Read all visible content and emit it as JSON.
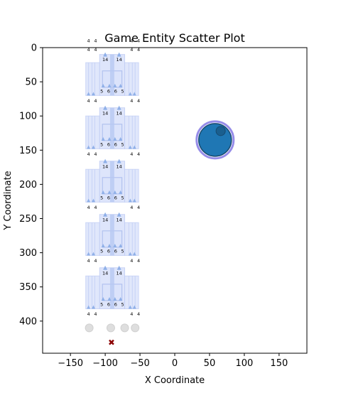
{
  "chart_data": {
    "type": "scatter",
    "title": "Game Entity Scatter Plot",
    "xlabel": "X Coordinate",
    "ylabel": "Y Coordinate",
    "xlim": [
      -190,
      190
    ],
    "ylim": [
      447,
      0
    ],
    "y_inverted": true,
    "x_ticks": [
      -150,
      -100,
      -50,
      0,
      50,
      100,
      150
    ],
    "x_tick_labels": [
      "−150",
      "−100",
      "−50",
      "0",
      "50",
      "100",
      "150"
    ],
    "y_ticks": [
      0,
      50,
      100,
      150,
      200,
      250,
      300,
      350,
      400
    ],
    "y_tick_labels": [
      "0",
      "50",
      "100",
      "150",
      "200",
      "250",
      "300",
      "350",
      "400"
    ],
    "grid": false,
    "colors": {
      "wall_fill": "#dbe3fb",
      "wall_edge": "#c3cff5",
      "triangle": "#8fb0e8",
      "player": "#1f77b4",
      "player_ring": "#8b7fe6",
      "enemy": "#8b0000",
      "gray_circle": "#d9d9d9"
    },
    "structure_repeats_y": [
      40,
      118,
      196,
      274,
      352
    ],
    "label_rows": [
      {
        "y": -8,
        "labels": [
          "4",
          "4",
          "",
          "",
          "4",
          "4"
        ]
      },
      {
        "y": 5,
        "labels": [
          "4",
          "4",
          "4",
          "4"
        ]
      },
      {
        "y": 80,
        "labels": [
          "4",
          "4",
          "4",
          "4"
        ]
      },
      {
        "y": 158,
        "labels": [
          "4",
          "4",
          "4",
          "4"
        ]
      },
      {
        "y": 236,
        "labels": [
          "4",
          "4",
          "4",
          "4"
        ]
      },
      {
        "y": 314,
        "labels": [
          "4",
          "4",
          "4",
          "4"
        ]
      },
      {
        "y": 392,
        "labels": [
          "4",
          "4",
          "4",
          "4"
        ]
      }
    ],
    "mid_labels": [
      "5",
      "6",
      "6",
      "5"
    ],
    "tri_labels": [
      "14",
      "14"
    ],
    "series": [
      {
        "x": [
          -123,
          -92,
          -72,
          -57
        ],
        "y": [
          410,
          410,
          410,
          410
        ],
        "marker": "circle"
      },
      {
        "x": [
          58
        ],
        "y": [
          135
        ],
        "marker": "large-circle"
      },
      {
        "x": [
          66
        ],
        "y": [
          122
        ],
        "marker": "small-circle"
      },
      {
        "x": [
          -91
        ],
        "y": [
          431
        ],
        "marker": "x"
      }
    ]
  }
}
